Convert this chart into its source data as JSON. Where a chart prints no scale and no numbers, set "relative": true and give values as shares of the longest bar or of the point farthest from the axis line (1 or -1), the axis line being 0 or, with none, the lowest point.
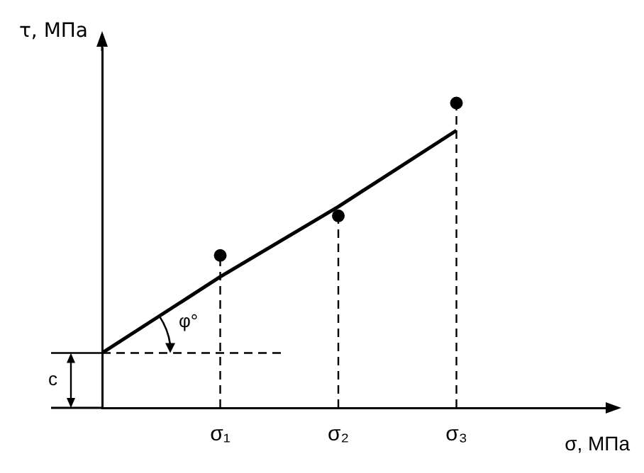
{
  "chart_data": {
    "type": "line",
    "relative": true,
    "xlabel": "σ, МПа",
    "ylabel": "τ, МПа",
    "categories": [
      null,
      "σ₁",
      "σ₂",
      "σ₃"
    ],
    "series": [
      {
        "color": "#000000",
        "values": [
          0.18,
          0.43,
          0.66,
          0.91
        ],
        "marker": "none",
        "line_style": "solid"
      },
      {
        "type": "lollipop",
        "color": "#000000",
        "values": [
          null,
          0.5,
          0.63,
          1.0
        ],
        "marker": "circle",
        "line_style": "dashed"
      }
    ],
    "ref_lines": [
      {
        "axis": "y",
        "value": 0.18,
        "line_style": "dashed",
        "color": "#000000"
      }
    ],
    "annotations": [
      "φ°",
      "c"
    ]
  }
}
